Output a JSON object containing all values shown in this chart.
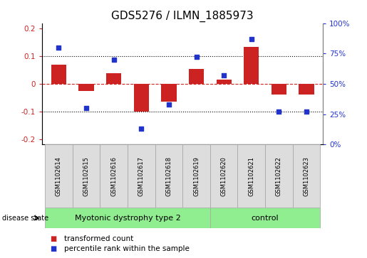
{
  "title": "GDS5276 / ILMN_1885973",
  "samples": [
    "GSM1102614",
    "GSM1102615",
    "GSM1102616",
    "GSM1102617",
    "GSM1102618",
    "GSM1102619",
    "GSM1102620",
    "GSM1102621",
    "GSM1102622",
    "GSM1102623"
  ],
  "transformed_count": [
    0.07,
    -0.025,
    0.038,
    -0.1,
    -0.065,
    0.055,
    0.015,
    0.135,
    -0.038,
    -0.038
  ],
  "percentile_rank": [
    80,
    30,
    70,
    13,
    33,
    72,
    57,
    87,
    27,
    27
  ],
  "ylim_left": [
    -0.22,
    0.22
  ],
  "ylim_right": [
    0,
    100
  ],
  "yticks_left": [
    -0.2,
    -0.1,
    0.0,
    0.1,
    0.2
  ],
  "ytick_labels_left": [
    "-0.2",
    "-0.1",
    "0",
    "0.1",
    "0.2"
  ],
  "yticks_right": [
    0,
    25,
    50,
    75,
    100
  ],
  "ytick_labels_right": [
    "0%",
    "25%",
    "50%",
    "75%",
    "100%"
  ],
  "bar_color": "#cc2222",
  "dot_color": "#2233cc",
  "grid_color": "black",
  "zero_line_color": "#cc2222",
  "hline_color": "black",
  "box_color": "#dddddd",
  "box_edge_color": "#aaaaaa",
  "disease_groups": [
    {
      "label": "Myotonic dystrophy type 2",
      "start": 0,
      "end": 6,
      "color": "#90ee90"
    },
    {
      "label": "control",
      "start": 6,
      "end": 10,
      "color": "#90ee90"
    }
  ],
  "disease_label": "disease state",
  "legend_items": [
    {
      "label": "transformed count",
      "color": "#cc2222"
    },
    {
      "label": "percentile rank within the sample",
      "color": "#2233cc"
    }
  ],
  "title_fontsize": 11,
  "tick_fontsize": 7.5,
  "sample_fontsize": 6,
  "disease_fontsize": 8,
  "legend_fontsize": 7.5
}
